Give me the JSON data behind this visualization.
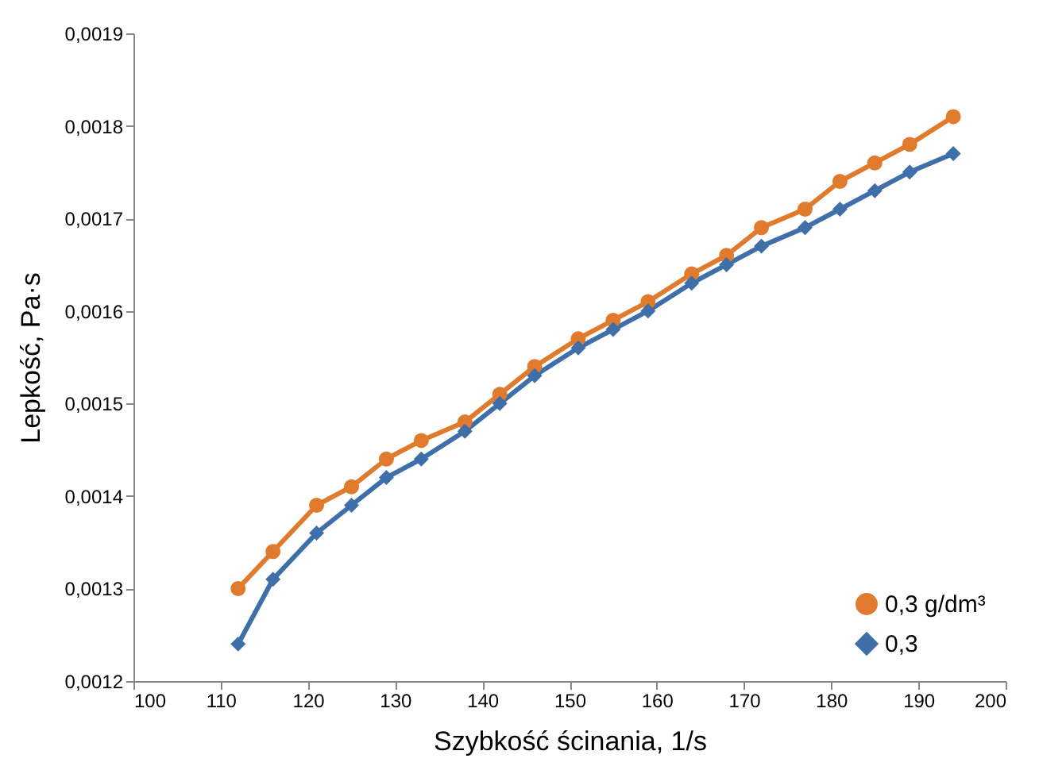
{
  "chart_data": {
    "type": "line",
    "xlabel": "Szybkość ścinania, 1/s",
    "ylabel": "Lepkość, Pa·s",
    "x": [
      112,
      116,
      121,
      125,
      129,
      133,
      138,
      142,
      146,
      151,
      155,
      159,
      164,
      168,
      172,
      177,
      181,
      185,
      189,
      194
    ],
    "series": [
      {
        "name": "0,3 g/dm³",
        "color": "#e07b2e",
        "marker": "circle",
        "values": [
          0.0013,
          0.00134,
          0.00139,
          0.00141,
          0.00144,
          0.00146,
          0.00148,
          0.00151,
          0.00154,
          0.00157,
          0.00159,
          0.00161,
          0.00164,
          0.00166,
          0.00169,
          0.00171,
          0.00174,
          0.00176,
          0.00178,
          0.00181
        ]
      },
      {
        "name": "0,3",
        "color": "#3e6fa8",
        "marker": "diamond",
        "values": [
          0.00124,
          0.00131,
          0.00136,
          0.00139,
          0.00142,
          0.00144,
          0.00147,
          0.0015,
          0.00153,
          0.00156,
          0.00158,
          0.0016,
          0.00163,
          0.00165,
          0.00167,
          0.00169,
          0.00171,
          0.00173,
          0.00175,
          0.00177
        ]
      }
    ],
    "xlim": [
      100,
      200
    ],
    "xticks": [
      100,
      110,
      120,
      130,
      140,
      150,
      160,
      170,
      180,
      190,
      200
    ],
    "ylim": [
      0.0012,
      0.0019
    ],
    "yticks": [
      {
        "value": 0.0012,
        "label": "0,0012"
      },
      {
        "value": 0.0013,
        "label": "0,0013"
      },
      {
        "value": 0.0014,
        "label": "0,0014"
      },
      {
        "value": 0.0015,
        "label": "0,0015"
      },
      {
        "value": 0.0016,
        "label": "0,0016"
      },
      {
        "value": 0.0017,
        "label": "0,0017"
      },
      {
        "value": 0.0018,
        "label": "0,0018"
      },
      {
        "value": 0.0019,
        "label": "0,0019"
      }
    ],
    "grid": false,
    "legend": "bottom right",
    "line_style": "solid"
  }
}
